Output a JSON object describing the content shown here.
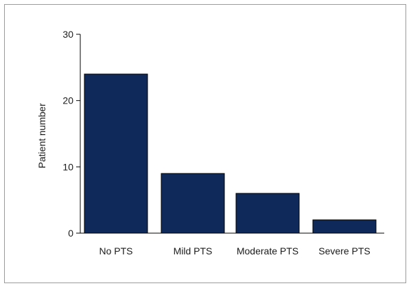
{
  "chart_data": {
    "type": "bar",
    "title": "",
    "xlabel": "",
    "ylabel": "Patient number",
    "categories": [
      "No PTS",
      "Mild PTS",
      "Moderate PTS",
      "Severe PTS"
    ],
    "values": [
      24,
      9,
      6,
      2
    ],
    "ylim": [
      0,
      30
    ],
    "yticks": [
      "0",
      "10",
      "20",
      "30"
    ],
    "grid": false,
    "legend": "none",
    "bar_color": "#0f2a5a",
    "bar_edge_color": "#000000"
  }
}
